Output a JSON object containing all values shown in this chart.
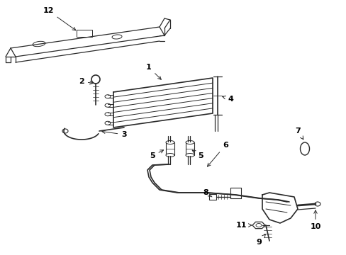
{
  "background_color": "#ffffff",
  "line_color": "#2a2a2a",
  "label_color": "#000000",
  "figure_width": 4.89,
  "figure_height": 3.6,
  "dpi": 100
}
